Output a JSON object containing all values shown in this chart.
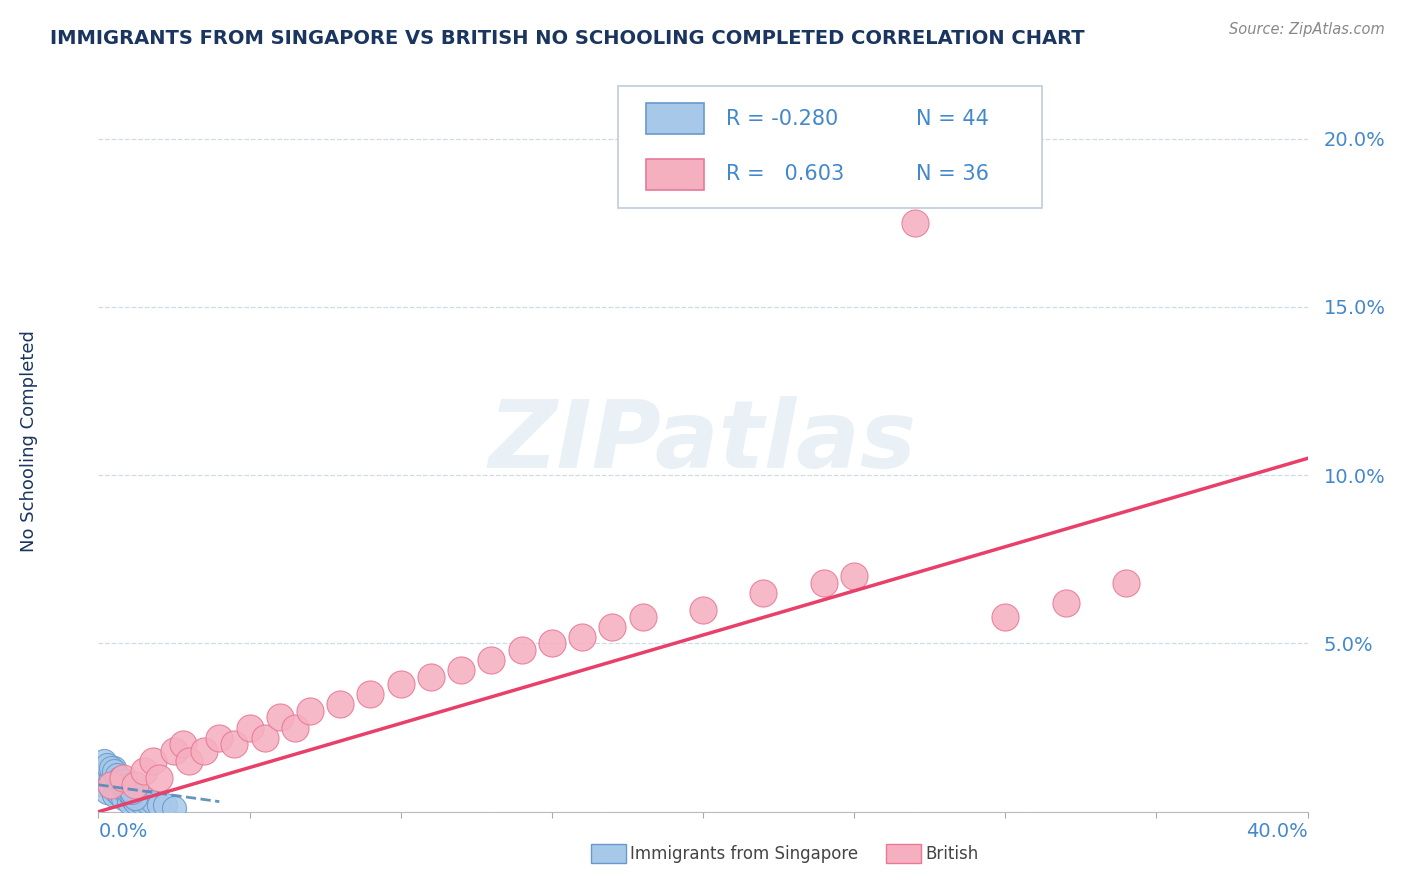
{
  "title": "IMMIGRANTS FROM SINGAPORE VS BRITISH NO SCHOOLING COMPLETED CORRELATION CHART",
  "source": "Source: ZipAtlas.com",
  "ylabel": "No Schooling Completed",
  "ytick_vals": [
    0.0,
    0.05,
    0.1,
    0.15,
    0.2
  ],
  "ytick_labels": [
    "",
    "5.0%",
    "10.0%",
    "15.0%",
    "20.0%"
  ],
  "xtick_left_label": "0.0%",
  "xtick_right_label": "40.0%",
  "xlim": [
    0.0,
    0.4
  ],
  "ylim": [
    0.0,
    0.22
  ],
  "legend_r1": "-0.280",
  "legend_n1": "44",
  "legend_r2": " 0.603",
  "legend_n2": "36",
  "color_singapore_fill": "#a8c8ea",
  "color_singapore_edge": "#6699cc",
  "color_british_fill": "#f5b0c0",
  "color_british_edge": "#e87898",
  "color_trend_singapore": "#5588bb",
  "color_trend_british": "#e8406a",
  "color_title": "#1a3560",
  "color_axis_label": "#4488cc",
  "color_grid": "#c8d8e8",
  "background_color": "#ffffff",
  "watermark_text": "ZIPatlas",
  "bottom_legend_singapore": "Immigrants from Singapore",
  "bottom_legend_british": "British",
  "sg_x": [
    0.002,
    0.003,
    0.004,
    0.004,
    0.005,
    0.005,
    0.006,
    0.007,
    0.007,
    0.008,
    0.008,
    0.009,
    0.01,
    0.01,
    0.011,
    0.012,
    0.013,
    0.014,
    0.015,
    0.016,
    0.018,
    0.02,
    0.022,
    0.025,
    0.003,
    0.004,
    0.005,
    0.006,
    0.007,
    0.008,
    0.009,
    0.01,
    0.011,
    0.012,
    0.002,
    0.003,
    0.004,
    0.005,
    0.006,
    0.007,
    0.008,
    0.009,
    0.01,
    0.011
  ],
  "sg_y": [
    0.008,
    0.006,
    0.007,
    0.01,
    0.005,
    0.009,
    0.006,
    0.008,
    0.005,
    0.007,
    0.004,
    0.006,
    0.005,
    0.003,
    0.004,
    0.003,
    0.004,
    0.003,
    0.004,
    0.003,
    0.003,
    0.002,
    0.002,
    0.001,
    0.012,
    0.011,
    0.013,
    0.01,
    0.009,
    0.008,
    0.007,
    0.006,
    0.005,
    0.004,
    0.015,
    0.014,
    0.013,
    0.012,
    0.011,
    0.01,
    0.009,
    0.008,
    0.007,
    0.006
  ],
  "br_x": [
    0.004,
    0.008,
    0.012,
    0.015,
    0.018,
    0.02,
    0.025,
    0.028,
    0.03,
    0.035,
    0.04,
    0.045,
    0.05,
    0.055,
    0.06,
    0.065,
    0.07,
    0.08,
    0.09,
    0.1,
    0.11,
    0.12,
    0.13,
    0.14,
    0.15,
    0.16,
    0.17,
    0.18,
    0.2,
    0.22,
    0.24,
    0.25,
    0.27,
    0.3,
    0.32,
    0.34
  ],
  "br_y": [
    0.008,
    0.01,
    0.008,
    0.012,
    0.015,
    0.01,
    0.018,
    0.02,
    0.015,
    0.018,
    0.022,
    0.02,
    0.025,
    0.022,
    0.028,
    0.025,
    0.03,
    0.032,
    0.035,
    0.038,
    0.04,
    0.042,
    0.045,
    0.048,
    0.05,
    0.052,
    0.055,
    0.058,
    0.06,
    0.065,
    0.068,
    0.07,
    0.175,
    0.058,
    0.062,
    0.068
  ],
  "sg_trend_x": [
    0.0,
    0.04
  ],
  "sg_trend_y": [
    0.008,
    0.003
  ],
  "br_trend_x": [
    0.0,
    0.4
  ],
  "br_trend_y": [
    0.0,
    0.105
  ]
}
